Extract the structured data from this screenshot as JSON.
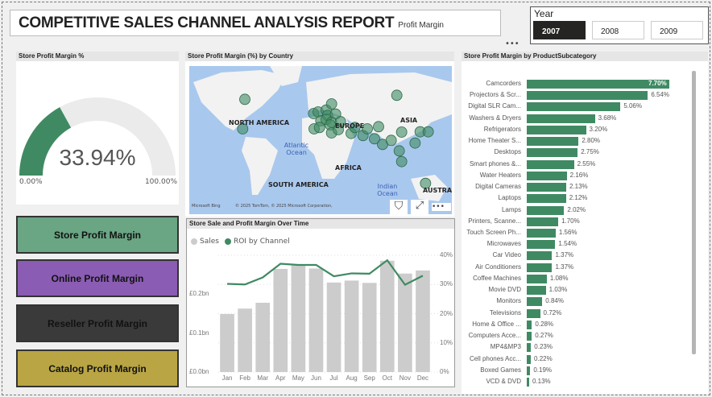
{
  "header": {
    "title": "COMPETITIVE SALES CHANNEL ANALYSIS REPORT",
    "subtitle": "Profit Margin"
  },
  "year_slicer": {
    "label": "Year",
    "options": [
      "2007",
      "2008",
      "2009"
    ],
    "selected": "2007"
  },
  "gauge": {
    "title": "Store Profit Margin %",
    "value": 33.94,
    "value_label": "33.94%",
    "min_label": "0.00%",
    "max_label": "100.00%",
    "color": "#3f8a63"
  },
  "map": {
    "title": "Store Profit Margin (%) by Country",
    "labels": {
      "na": "NORTH AMERICA",
      "sa": "SOUTH AMERICA",
      "eu": "EUROPE",
      "af": "AFRICA",
      "as": "ASIA",
      "au": "AUSTRALIA",
      "atl": "Atlantic Ocean",
      "ind": "Indian Ocean"
    },
    "attribution": "© 2025 TomTom, © 2025 Microsoft Corporation,",
    "bing": "Microsoft Bing"
  },
  "buttons": [
    {
      "label": "Store Profit Margin",
      "color": "#6aa584"
    },
    {
      "label": "Online Profit Margin",
      "color": "#8a5cb3"
    },
    {
      "label": "Reseller Profit Margin",
      "color": "#3a3a3a"
    },
    {
      "label": "Catalog Profit Margin",
      "color": "#b9a544"
    }
  ],
  "chart_data": [
    {
      "type": "bar",
      "title": "Store Profit Margin by ProductSubcategory",
      "orientation": "horizontal",
      "color": "#3f8a63",
      "categories": [
        "Camcorders",
        "Projectors & Scr...",
        "Digital SLR Cam...",
        "Washers & Dryers",
        "Refrigerators",
        "Home Theater S...",
        "Desktops",
        "Smart phones &...",
        "Water Heaters",
        "Digital Cameras",
        "Laptops",
        "Lamps",
        "Printers, Scanne...",
        "Touch Screen Ph...",
        "Microwaves",
        "Car Video",
        "Air Conditioners",
        "Coffee Machines",
        "Movie DVD",
        "Monitors",
        "Televisions",
        "Home & Office ...",
        "Computers Acce...",
        "MP4&MP3",
        "Cell phones Acc...",
        "Boxed Games",
        "VCD & DVD"
      ],
      "values": [
        7.7,
        6.54,
        5.06,
        3.68,
        3.2,
        2.8,
        2.75,
        2.55,
        2.16,
        2.13,
        2.12,
        2.02,
        1.7,
        1.56,
        1.54,
        1.37,
        1.37,
        1.08,
        1.03,
        0.84,
        0.72,
        0.28,
        0.27,
        0.23,
        0.22,
        0.19,
        0.13
      ],
      "labels": [
        "7.70%",
        "6.54%",
        "5.06%",
        "3.68%",
        "3.20%",
        "2.80%",
        "2.75%",
        "2.55%",
        "2.16%",
        "2.13%",
        "2.12%",
        "2.02%",
        "1.70%",
        "1.56%",
        "1.54%",
        "1.37%",
        "1.37%",
        "1.08%",
        "1.03%",
        "0.84%",
        "0.72%",
        "0.28%",
        "0.27%",
        "0.23%",
        "0.22%",
        "0.19%",
        "0.13%"
      ]
    },
    {
      "type": "bar+line",
      "title": "Store Sale and Profit Margin Over Time",
      "categories": [
        "Jan",
        "Feb",
        "Mar",
        "Apr",
        "May",
        "Jun",
        "Jul",
        "Aug",
        "Sep",
        "Oct",
        "Nov",
        "Dec"
      ],
      "series": [
        {
          "name": "Sales",
          "type": "bar",
          "color": "#cccccc",
          "axis": "left",
          "values": [
            0.149,
            0.163,
            0.178,
            0.265,
            0.274,
            0.266,
            0.23,
            0.235,
            0.229,
            0.286,
            0.253,
            0.261
          ]
        },
        {
          "name": "ROI by Channel",
          "type": "line",
          "color": "#3f8a63",
          "axis": "right",
          "values": [
            30.2,
            30.0,
            32.4,
            37.1,
            36.7,
            36.7,
            32.8,
            33.8,
            33.7,
            38.3,
            29.9,
            33.0
          ]
        }
      ],
      "left_ticks": [
        "£0.0bn",
        "£0.1bn",
        "£0.2bn"
      ],
      "left_range": [
        0,
        0.3
      ],
      "right_ticks": [
        "0%",
        "10%",
        "20%",
        "30%",
        "40%"
      ],
      "right_range": [
        0,
        40
      ],
      "legend": "top-left"
    }
  ]
}
